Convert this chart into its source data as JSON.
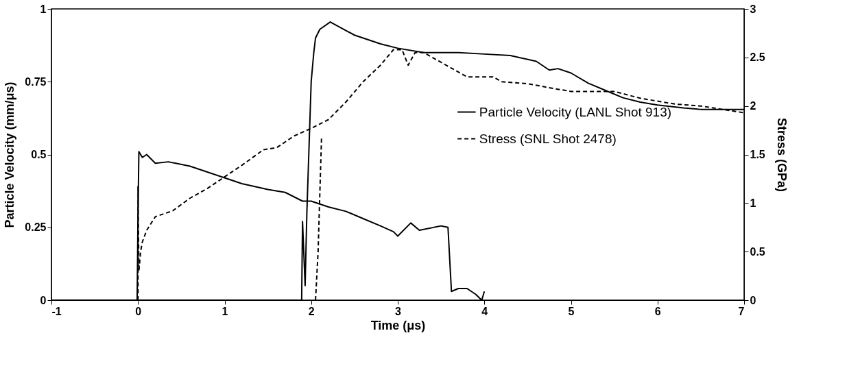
{
  "chart_data": {
    "type": "line",
    "xlabel": "Time  (μs)",
    "ylabel": "Particle Velocity (mm/μs)",
    "y2label": "Stress  (GPa)",
    "xlim": [
      -1,
      7
    ],
    "xticks": [
      -1,
      0,
      1,
      2,
      3,
      4,
      5,
      6,
      7
    ],
    "ylim": [
      0,
      1
    ],
    "yticks": [
      0,
      0.25,
      0.5,
      0.75,
      1
    ],
    "y2lim": [
      0,
      3
    ],
    "y2ticks": [
      0,
      0.5,
      1,
      1.5,
      2,
      2.5,
      3
    ],
    "grid": false,
    "legend": "right",
    "marker": "none",
    "series": [
      {
        "name": "Particle Velocity (LANL Shot 913)",
        "color": "#000000",
        "line_style": "solid",
        "x": [
          -1,
          -0.01,
          0,
          0.01,
          0.05,
          0.1,
          0.2,
          0.35,
          0.6,
          0.8,
          1.0,
          1.2,
          1.5,
          1.7,
          1.9,
          2.0,
          2.2,
          2.4,
          2.6,
          2.8,
          2.95,
          3.0,
          3.15,
          3.25,
          3.5,
          3.58,
          3.62,
          3.7,
          3.8,
          3.9,
          3.97,
          4.0
        ],
        "values": [
          0,
          0,
          0.3,
          0.51,
          0.49,
          0.5,
          0.47,
          0.475,
          0.46,
          0.44,
          0.42,
          0.4,
          0.38,
          0.37,
          0.34,
          0.34,
          0.32,
          0.305,
          0.28,
          0.255,
          0.235,
          0.22,
          0.265,
          0.24,
          0.255,
          0.25,
          0.03,
          0.04,
          0.04,
          0.02,
          0,
          0.03
        ]
      },
      {
        "color": "#000000",
        "line_style": "solid",
        "x": [
          -1,
          1.89,
          1.9,
          1.93,
          1.95,
          2.0,
          2.03,
          2.05,
          2.1,
          2.22,
          2.5,
          2.8,
          3.0,
          3.3,
          3.7,
          4.0,
          4.3,
          4.6,
          4.75,
          4.85,
          5.0,
          5.2,
          5.4,
          5.6,
          5.8,
          6.0,
          6.3,
          6.5,
          7.0
        ],
        "values": [
          0,
          0,
          0.27,
          0.05,
          0.3,
          0.75,
          0.85,
          0.9,
          0.93,
          0.955,
          0.91,
          0.88,
          0.865,
          0.85,
          0.85,
          0.845,
          0.84,
          0.82,
          0.79,
          0.795,
          0.78,
          0.745,
          0.72,
          0.695,
          0.68,
          0.67,
          0.66,
          0.655,
          0.655
        ]
      },
      {
        "name": "Stress (SNL Shot 2478)",
        "color": "#000000",
        "line_style": "dashed",
        "axis": "y2",
        "x": [
          0,
          0,
          0.01,
          0.03,
          0.05,
          0.1,
          0.2,
          0.4,
          0.6,
          0.8,
          1.0,
          1.2,
          1.45,
          1.6,
          1.8,
          2.0,
          2.2,
          2.4,
          2.6,
          2.8,
          2.95,
          3.05,
          3.12,
          3.2,
          3.3,
          3.5,
          3.8,
          4.1,
          4.2,
          4.5,
          4.8,
          5.0,
          5.2,
          5.5,
          5.8,
          6.2,
          6.5,
          7.0
        ],
        "values": [
          0,
          1.17,
          0.3,
          0.5,
          0.6,
          0.72,
          0.86,
          0.92,
          1.05,
          1.15,
          1.27,
          1.39,
          1.55,
          1.57,
          1.69,
          1.77,
          1.86,
          2.04,
          2.25,
          2.42,
          2.58,
          2.58,
          2.42,
          2.55,
          2.55,
          2.45,
          2.3,
          2.3,
          2.25,
          2.23,
          2.18,
          2.15,
          2.15,
          2.15,
          2.08,
          2.02,
          2.0,
          1.93
        ]
      },
      {
        "color": "#000000",
        "line_style": "dashed",
        "axis": "y2",
        "x": [
          2.05,
          2.08,
          2.1,
          2.12
        ],
        "values": [
          0,
          0.5,
          1.1,
          1.69
        ]
      }
    ]
  }
}
